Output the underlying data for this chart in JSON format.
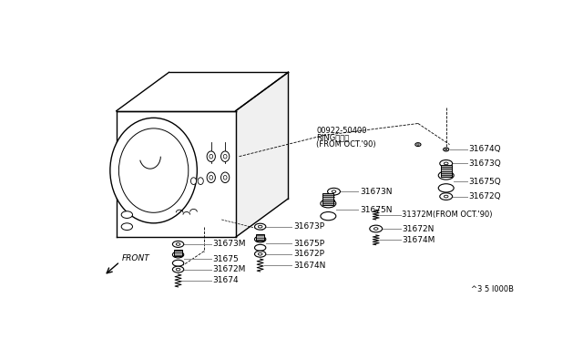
{
  "bg_color": "#ffffff",
  "line_color": "#000000",
  "gray_color": "#888888",
  "text_color": "#000000",
  "diagram_number": "^3 5 I000B",
  "figsize": [
    6.4,
    3.72
  ],
  "dpi": 100,
  "annotation": {
    "line1": "00922-50400",
    "line2": "RINGリング",
    "line3": "(FROM OCT.'90)"
  }
}
